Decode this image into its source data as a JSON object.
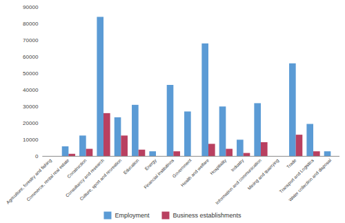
{
  "chart_data": {
    "type": "bar",
    "categories": [
      "Agriculture, forestry and fishing",
      "Commerce, rental real estate",
      "Construction",
      "Consultancy and research",
      "Culture, sport and recreation",
      "Education",
      "Energy",
      "Financial institutions",
      "Government",
      "Health and welfare",
      "Hospitality",
      "Industry",
      "Information and communication",
      "Mining and quarrying",
      "Trade",
      "Transport and Logistics",
      "Water collection and disposal"
    ],
    "series": [
      {
        "name": "Employment",
        "color": "#5B9BD5",
        "values": [
          0,
          6000,
          12500,
          84000,
          23500,
          31000,
          3000,
          43000,
          27000,
          68000,
          30000,
          10000,
          32000,
          0,
          56000,
          19500,
          3000
        ]
      },
      {
        "name": "Business establishments",
        "color": "#B94060",
        "values": [
          0,
          1500,
          4500,
          26000,
          12500,
          4000,
          0,
          3000,
          0,
          7500,
          4500,
          2000,
          8500,
          0,
          13000,
          3000,
          0
        ]
      }
    ],
    "ylim": [
      0,
      90000
    ],
    "yticks": [
      0,
      10000,
      20000,
      30000,
      40000,
      50000,
      60000,
      70000,
      80000,
      90000
    ],
    "grid": false,
    "legend": "bottom"
  }
}
